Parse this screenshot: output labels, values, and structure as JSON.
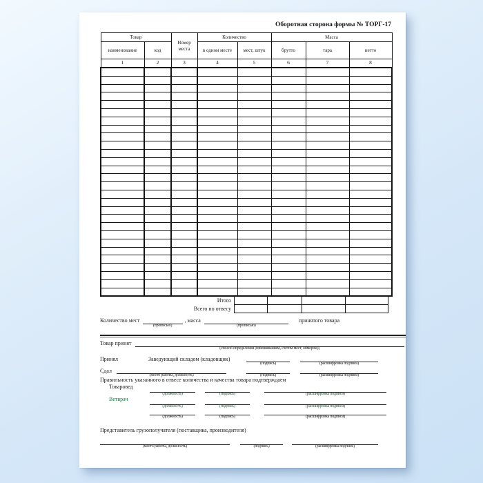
{
  "title": "Оборотная сторона формы № ТОРГ-17",
  "table": {
    "tovar_group": "Товар",
    "naimenovanie": "наименование",
    "kod": "код",
    "nomer_mesta": "Номер места",
    "kolichestvo_group": "Количество",
    "v_odnom_meste": "в одном месте",
    "mest_shtuk": "мест, штук",
    "massa_group": "Масса",
    "brutto": "брутто",
    "tara": "тара",
    "netto": "нетто",
    "column_numbers": [
      "1",
      "2",
      "3",
      "4",
      "5",
      "6",
      "7",
      "8"
    ],
    "empty_row_count": 28,
    "totals_rows": [
      {
        "label": "Итого"
      },
      {
        "label": "Всего по отвесу"
      }
    ]
  },
  "captions": {
    "propisyu": "(прописью)",
    "sposob": "(способ определения (взвешиванием, счетом мест, обмером))",
    "mesto": "(место работы, должность)",
    "podpis": "(подпись)",
    "rasshifrovka": "(расшифровка подписи)",
    "dolzhnost": "(должность)"
  },
  "qty_line": {
    "prefix": "Количество мест",
    "middle": ", масса",
    "suffix": "принятого товара"
  },
  "tovar_prinyat": {
    "label": "Товар принят"
  },
  "prinyal": {
    "label": "Принял",
    "role": "Заведующий складом (кладовщик)"
  },
  "sdal": {
    "label": "Сдал"
  },
  "confirm_text": "Правильность указанного в отвесе количества и качества товара подтверждаем",
  "signers": {
    "rows": [
      {
        "label": "Товаровед"
      },
      {
        "label": "Ветврач"
      },
      {
        "label": ""
      }
    ]
  },
  "predstavitel": {
    "title": "Представитель грузополучателя (поставщика, производителя)"
  }
}
